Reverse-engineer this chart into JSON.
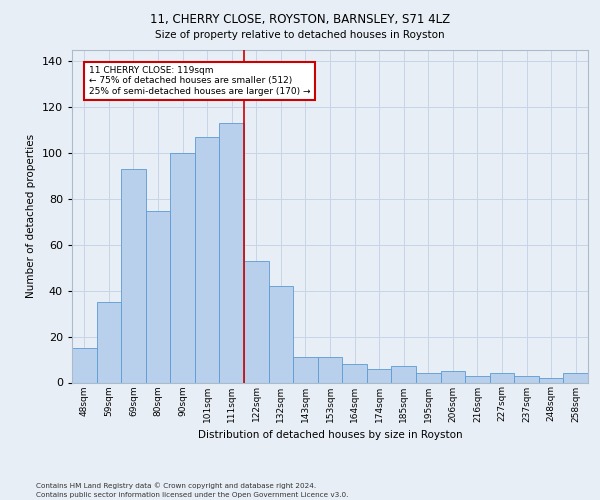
{
  "title1": "11, CHERRY CLOSE, ROYSTON, BARNSLEY, S71 4LZ",
  "title2": "Size of property relative to detached houses in Royston",
  "xlabel": "Distribution of detached houses by size in Royston",
  "ylabel": "Number of detached properties",
  "categories": [
    "48sqm",
    "59sqm",
    "69sqm",
    "80sqm",
    "90sqm",
    "101sqm",
    "111sqm",
    "122sqm",
    "132sqm",
    "143sqm",
    "153sqm",
    "164sqm",
    "174sqm",
    "185sqm",
    "195sqm",
    "206sqm",
    "216sqm",
    "227sqm",
    "237sqm",
    "248sqm",
    "258sqm"
  ],
  "values": [
    15,
    35,
    93,
    75,
    100,
    107,
    113,
    53,
    42,
    11,
    11,
    8,
    6,
    7,
    4,
    5,
    3,
    4,
    3,
    2,
    4
  ],
  "bar_color": "#b8d0eb",
  "bar_edge_color": "#5b9bd5",
  "vline_x_idx": 7,
  "vline_color": "#cc0000",
  "annotation_text": "11 CHERRY CLOSE: 119sqm\n← 75% of detached houses are smaller (512)\n25% of semi-detached houses are larger (170) →",
  "annotation_box_facecolor": "#ffffff",
  "annotation_box_edgecolor": "#cc0000",
  "ylim": [
    0,
    145
  ],
  "yticks": [
    0,
    20,
    40,
    60,
    80,
    100,
    120,
    140
  ],
  "grid_color": "#c8d4e8",
  "background_color": "#e8eef6",
  "footnote1": "Contains HM Land Registry data © Crown copyright and database right 2024.",
  "footnote2": "Contains public sector information licensed under the Open Government Licence v3.0."
}
